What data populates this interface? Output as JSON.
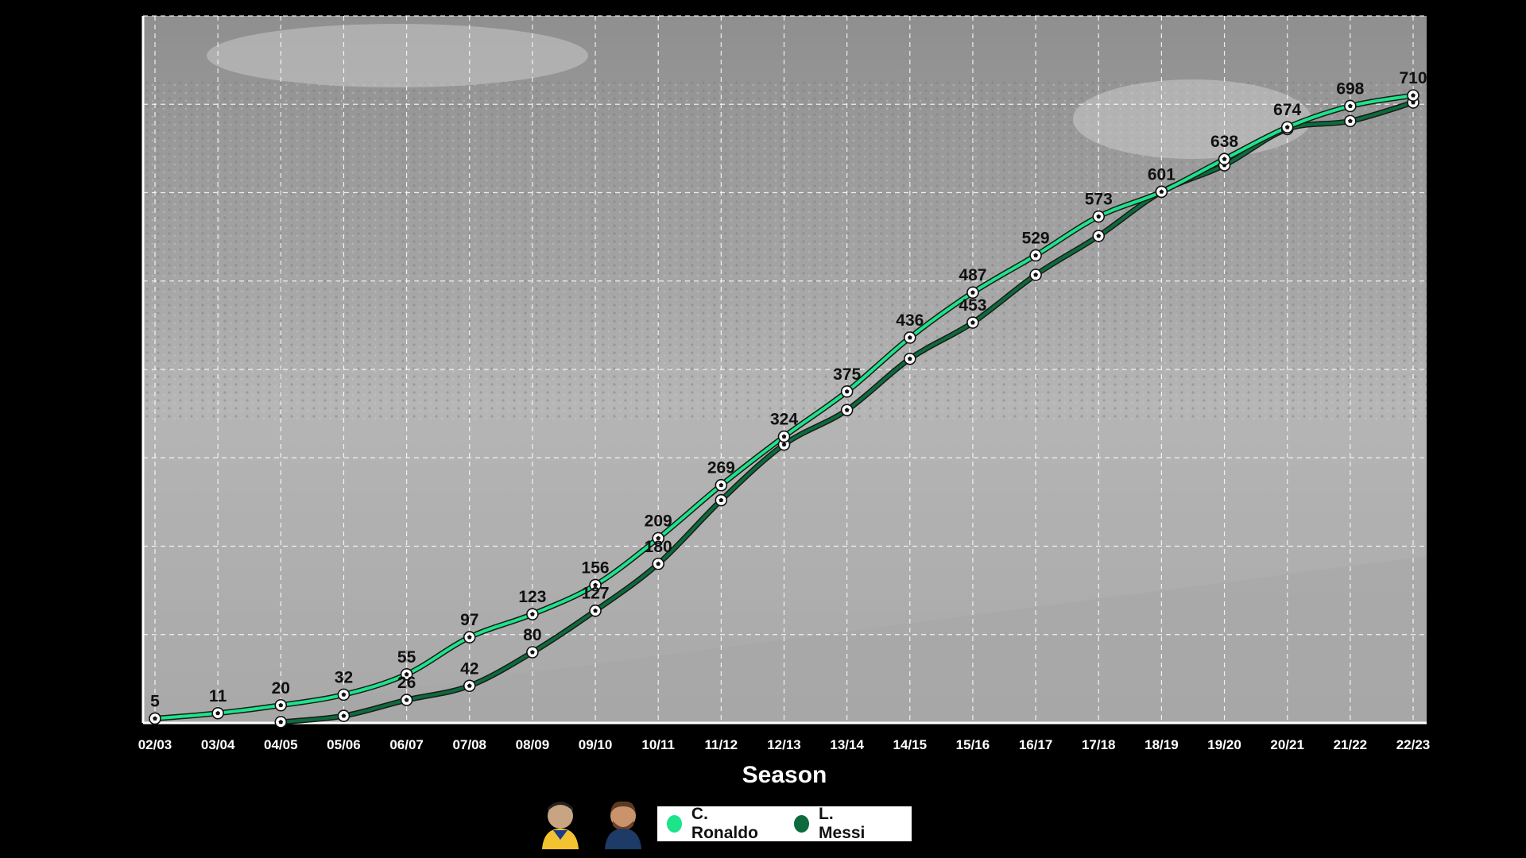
{
  "chart_data": {
    "type": "line",
    "title": "",
    "xlabel": "Season",
    "ylabel": "",
    "categories": [
      "02/03",
      "03/04",
      "04/05",
      "05/06",
      "06/07",
      "07/08",
      "08/09",
      "09/10",
      "10/11",
      "11/12",
      "12/13",
      "13/14",
      "14/15",
      "15/16",
      "16/17",
      "17/18",
      "18/19",
      "19/20",
      "20/21",
      "21/22",
      "22/23"
    ],
    "ylim": [
      0,
      800
    ],
    "grid": true,
    "legend_position": "bottom-center",
    "series": [
      {
        "name": "C. Ronaldo",
        "color": "#1de38a",
        "values": [
          5,
          11,
          20,
          32,
          55,
          97,
          123,
          156,
          209,
          269,
          324,
          375,
          436,
          487,
          529,
          573,
          601,
          638,
          674,
          698,
          710
        ]
      },
      {
        "name": "L. Messi",
        "color": "#0c6b3d",
        "values": [
          null,
          null,
          1,
          8,
          26,
          42,
          80,
          127,
          180,
          252,
          315,
          354,
          412,
          453,
          507,
          551,
          601,
          631,
          672,
          681,
          702
        ],
        "labeled_values": [
          26,
          42,
          80,
          127,
          180,
          453
        ]
      }
    ]
  },
  "legend": {
    "items": [
      {
        "label": "C. Ronaldo",
        "color": "#1de38a"
      },
      {
        "label": "L. Messi",
        "color": "#0c6b3d"
      }
    ]
  },
  "avatars": [
    {
      "icon": "ronaldo-avatar-icon"
    },
    {
      "icon": "messi-avatar-icon"
    }
  ]
}
